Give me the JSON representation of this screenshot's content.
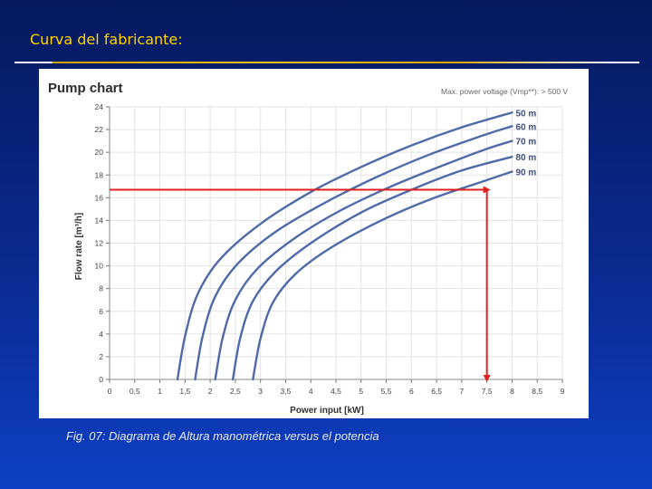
{
  "slide": {
    "title": "Curva del fabricante:",
    "caption": "Fig. 07: Diagrama de Altura manométrica versus el potencia"
  },
  "chart_data": {
    "type": "line",
    "title": "Pump chart",
    "subtitle": "Max. power voltage (Vmp**): > 500 V",
    "xlabel": "Power input [kW]",
    "ylabel": "Flow rate [m³/h]",
    "xlim": [
      0,
      9
    ],
    "ylim": [
      0,
      24
    ],
    "xticks": [
      "0",
      "0,5",
      "1",
      "1,5",
      "2",
      "2,5",
      "3",
      "3,5",
      "4",
      "4,5",
      "5",
      "5,5",
      "6",
      "6,5",
      "7",
      "7,5",
      "8",
      "8,5",
      "9"
    ],
    "yticks": [
      "0",
      "2",
      "4",
      "6",
      "8",
      "10",
      "12",
      "14",
      "16",
      "18",
      "20",
      "22",
      "24"
    ],
    "grid": true,
    "series": [
      {
        "name": "50 m",
        "x": [
          1.35,
          1.5,
          1.75,
          2.2,
          3.0,
          4.0,
          5.0,
          6.0,
          7.0,
          8.0
        ],
        "y": [
          0,
          3.8,
          7.5,
          10.6,
          13.7,
          16.5,
          18.7,
          20.6,
          22.2,
          23.5
        ]
      },
      {
        "name": "60 m",
        "x": [
          1.7,
          1.85,
          2.1,
          2.55,
          3.3,
          4.3,
          5.3,
          6.3,
          7.3,
          8.0
        ],
        "y": [
          0,
          3.8,
          7.3,
          10.2,
          13.0,
          15.6,
          17.8,
          19.7,
          21.3,
          22.3
        ]
      },
      {
        "name": "70 m",
        "x": [
          2.1,
          2.25,
          2.5,
          2.95,
          3.7,
          4.6,
          5.6,
          6.6,
          7.5,
          8.0
        ],
        "y": [
          0,
          3.7,
          7.0,
          9.8,
          12.5,
          14.9,
          17.0,
          18.8,
          20.3,
          21.0
        ]
      },
      {
        "name": "80 m",
        "x": [
          2.45,
          2.6,
          2.85,
          3.3,
          4.0,
          5.0,
          6.0,
          7.0,
          8.0
        ],
        "y": [
          0,
          3.7,
          6.9,
          9.5,
          12.0,
          14.7,
          16.7,
          18.4,
          19.6
        ]
      },
      {
        "name": "90 m",
        "x": [
          2.85,
          3.0,
          3.25,
          3.7,
          4.4,
          5.4,
          6.4,
          7.4,
          8.0
        ],
        "y": [
          0,
          3.6,
          6.8,
          9.3,
          11.6,
          14.0,
          15.9,
          17.4,
          18.3
        ]
      }
    ],
    "annotation": {
      "x": 7.5,
      "y": 16.7,
      "color": "#e02020"
    },
    "line_color": "#4f6aa8"
  }
}
